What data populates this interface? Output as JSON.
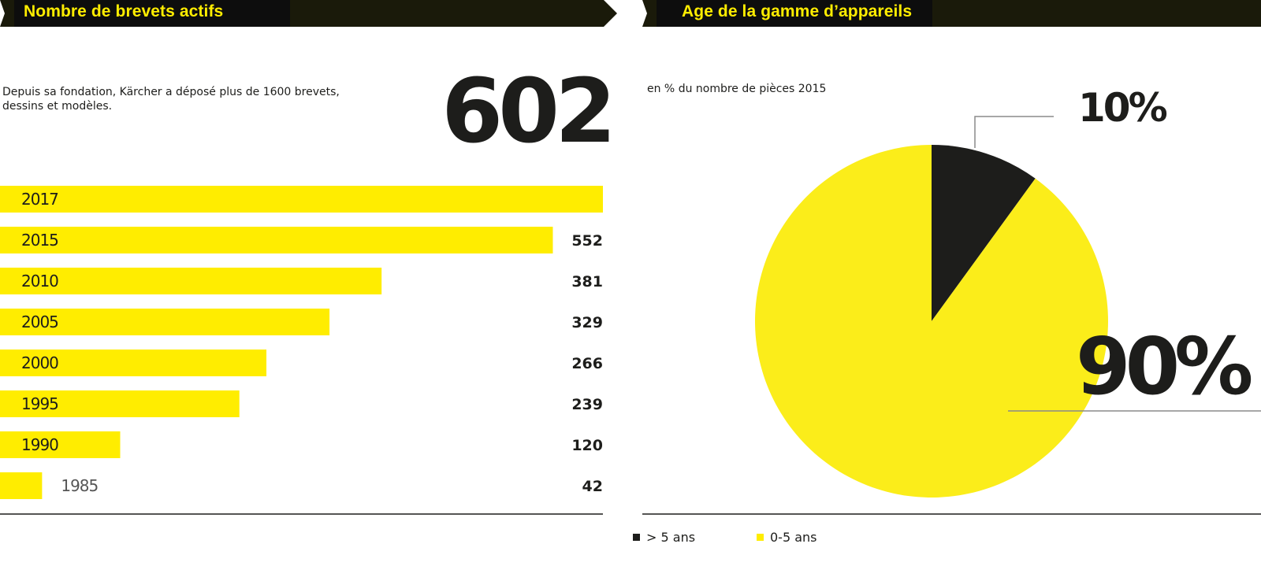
{
  "left_panel": {
    "title": "Nombre de brevets actifs",
    "description": "Depuis sa fondation, Kärcher a déposé plus de 1600 brevets, dessins et modèles.",
    "highlight_value": "602"
  },
  "right_panel": {
    "title": "Age de la gamme d’appareils",
    "subtitle": "en % du nombre de pièces 2015"
  },
  "colors": {
    "yellow": "#ffed00",
    "pie_yellow": "#fbed1a",
    "black": "#1d1d1b",
    "header_bg": "#1a1a0a",
    "header_label_bg": "#0d0d0d"
  },
  "chart_data": [
    {
      "type": "bar",
      "orientation": "horizontal",
      "categories": [
        "2017",
        "2015",
        "2010",
        "2005",
        "2000",
        "1995",
        "1990",
        "1985"
      ],
      "values": [
        602,
        552,
        381,
        329,
        266,
        239,
        120,
        42
      ],
      "value_labels": [
        "",
        "552",
        "381",
        "329",
        "266",
        "239",
        "120",
        "42"
      ],
      "xlim": [
        0,
        602
      ],
      "grid": false
    },
    {
      "type": "pie",
      "slices": [
        {
          "label": "> 5 ans",
          "value": 10,
          "value_label": "10%",
          "color": "#1d1d1b"
        },
        {
          "label": "0-5 ans",
          "value": 90,
          "value_label": "90%",
          "color": "#fbed1a"
        }
      ],
      "legend": "bottom-left"
    }
  ]
}
